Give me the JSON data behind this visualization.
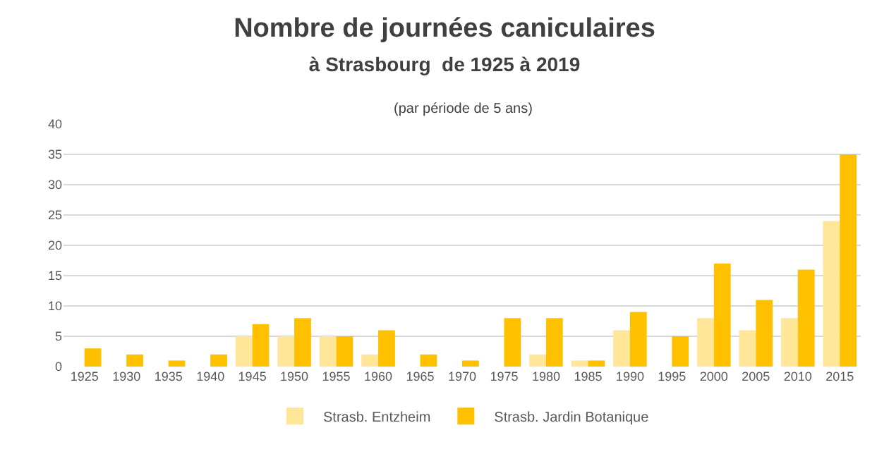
{
  "chart_data": {
    "type": "bar",
    "title": "Nombre de journées caniculaires",
    "subtitle": "à Strasbourg  de 1925 à 2019",
    "annotations": [
      "(par période de 5 ans)"
    ],
    "categories": [
      "1925",
      "1930",
      "1935",
      "1940",
      "1945",
      "1950",
      "1955",
      "1960",
      "1965",
      "1970",
      "1975",
      "1980",
      "1985",
      "1990",
      "1995",
      "2000",
      "2005",
      "2010",
      "2015"
    ],
    "series": [
      {
        "name": "Strasb. Entzheim",
        "color": "#ffe699",
        "values": [
          0,
          0,
          0,
          0,
          5,
          5,
          5,
          2,
          0,
          0,
          0,
          2,
          1,
          6,
          0,
          8,
          6,
          8,
          24
        ]
      },
      {
        "name": "Strasb. Jardin Botanique",
        "color": "#ffc000",
        "values": [
          3,
          2,
          1,
          2,
          7,
          8,
          5,
          6,
          2,
          1,
          8,
          8,
          1,
          9,
          5,
          17,
          11,
          16,
          35
        ]
      }
    ],
    "ylim": [
      0,
      40
    ],
    "yticks": [
      0,
      5,
      10,
      15,
      20,
      25,
      30,
      35,
      40
    ],
    "grid": "y",
    "legend": "bottom"
  }
}
